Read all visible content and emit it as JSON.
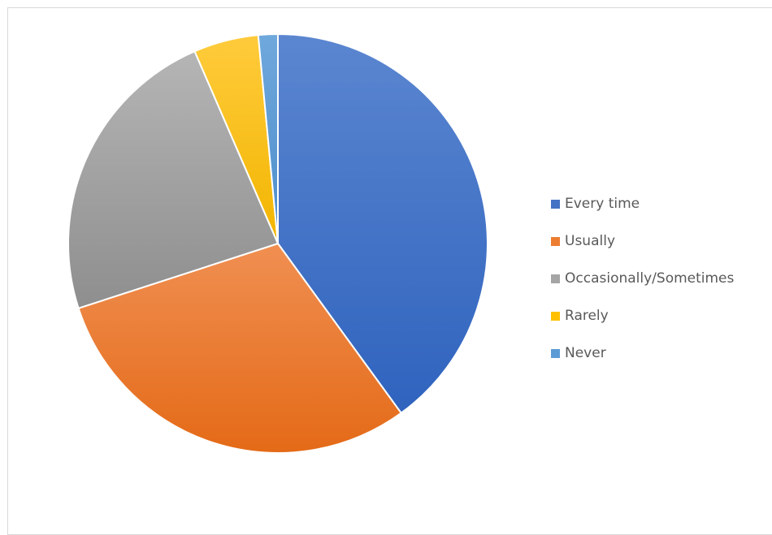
{
  "chart_data": {
    "type": "pie",
    "categories": [
      "Every time",
      "Usually",
      "Occasionally/Sometimes",
      "Rarely",
      "Never"
    ],
    "values": [
      40,
      30,
      23.5,
      5,
      1.5
    ],
    "colors": [
      "#4472C4",
      "#ED7D31",
      "#A5A5A5",
      "#FFC000",
      "#5B9BD5"
    ],
    "legend_position": "right"
  }
}
